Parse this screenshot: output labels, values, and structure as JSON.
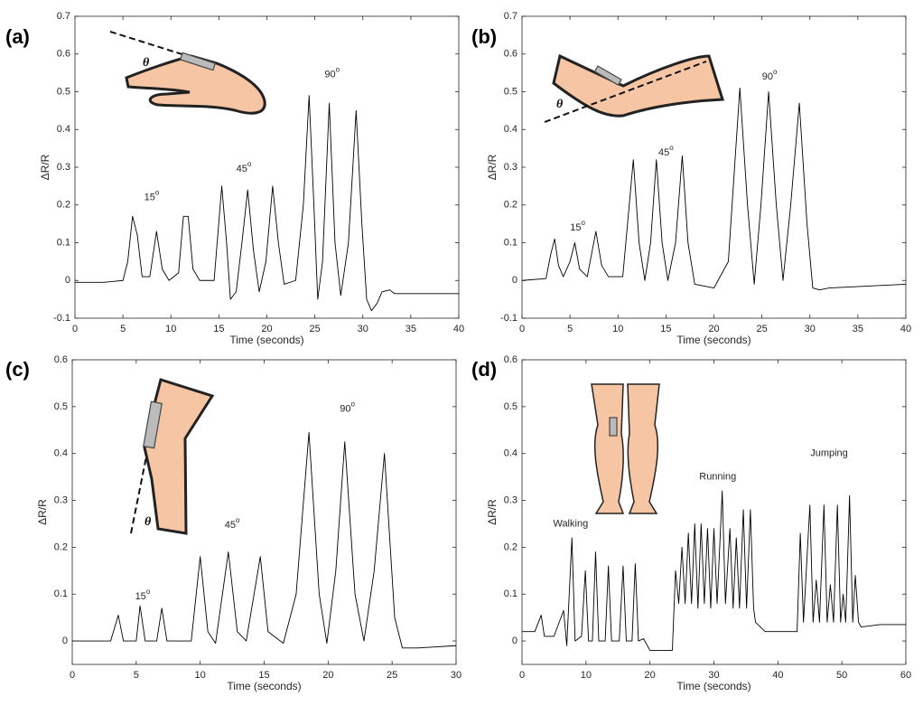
{
  "chart_data": [
    {
      "type": "line",
      "panel_label": "(a)",
      "xlabel": "Time (seconds)",
      "ylabel": "ΔR/R",
      "inset_label": "θ",
      "color": "#000000",
      "xlim": [
        0,
        40
      ],
      "xticks": [
        0,
        5,
        10,
        15,
        20,
        25,
        30,
        35,
        40
      ],
      "ylim": [
        -0.1,
        0.7
      ],
      "yticks": [
        -0.1,
        0,
        0.1,
        0.2,
        0.3,
        0.4,
        0.5,
        0.6,
        0.7
      ],
      "x": [
        0,
        3,
        5,
        5.5,
        6,
        6.5,
        7,
        7.8,
        8.5,
        9.1,
        9.8,
        10.8,
        11.3,
        11.8,
        12.3,
        13,
        14.5,
        15.3,
        15.8,
        16.2,
        16.8,
        17.4,
        18,
        18.6,
        19.2,
        19.9,
        20.6,
        21.2,
        21.8,
        23,
        23.8,
        24.4,
        24.9,
        25.3,
        25.8,
        26.5,
        27.1,
        27.7,
        28.5,
        29.3,
        29.9,
        30.4,
        30.9,
        31.5,
        32,
        32.8,
        33.3,
        36,
        40
      ],
      "values": [
        -0.005,
        -0.005,
        0,
        0.05,
        0.17,
        0.12,
        0.01,
        0.01,
        0.13,
        0.03,
        0,
        0.02,
        0.17,
        0.17,
        0.03,
        0,
        0,
        0.25,
        0.1,
        -0.05,
        -0.03,
        0.1,
        0.24,
        0.08,
        -0.03,
        0.05,
        0.25,
        0.1,
        -0.01,
        0,
        0.2,
        0.49,
        0.2,
        -0.05,
        0.05,
        0.47,
        0.1,
        -0.04,
        0.1,
        0.45,
        0.15,
        -0.05,
        -0.08,
        -0.06,
        -0.03,
        -0.025,
        -0.035,
        -0.035,
        -0.035
      ],
      "annotations": [
        {
          "text": "15",
          "sup": "o",
          "x": 8,
          "y": 0.22
        },
        {
          "text": "45",
          "sup": "o",
          "x": 17.6,
          "y": 0.295
        },
        {
          "text": "90",
          "sup": "o",
          "x": 26.8,
          "y": 0.546
        }
      ]
    },
    {
      "type": "line",
      "panel_label": "(b)",
      "xlabel": "Time (seconds)",
      "ylabel": "ΔR/R",
      "inset_label": "θ",
      "color": "#000000",
      "xlim": [
        0,
        40
      ],
      "xticks": [
        0,
        5,
        10,
        15,
        20,
        25,
        30,
        35,
        40
      ],
      "ylim": [
        -0.1,
        0.7
      ],
      "yticks": [
        -0.1,
        0,
        0.1,
        0.2,
        0.3,
        0.4,
        0.5,
        0.6,
        0.7
      ],
      "x": [
        0,
        2.5,
        3,
        3.4,
        3.8,
        4.3,
        5,
        5.5,
        6,
        6.8,
        7.7,
        8.3,
        9,
        10.5,
        11.6,
        12.2,
        12.8,
        13.4,
        14,
        14.6,
        15.2,
        16,
        16.7,
        17.3,
        18,
        20,
        21.5,
        22.7,
        23.5,
        24.2,
        24.9,
        25.7,
        26.5,
        27.2,
        28,
        28.9,
        29.7,
        30.3,
        31,
        32,
        40
      ],
      "values": [
        0,
        0.005,
        0.07,
        0.11,
        0.04,
        0.01,
        0.05,
        0.1,
        0.03,
        0.01,
        0.13,
        0.04,
        0.01,
        0.01,
        0.32,
        0.1,
        0,
        0.1,
        0.32,
        0.1,
        0,
        0.1,
        0.33,
        0.1,
        -0.01,
        -0.02,
        0.05,
        0.51,
        0.2,
        -0.01,
        0.2,
        0.5,
        0.2,
        0,
        0.2,
        0.47,
        0.15,
        -0.02,
        -0.025,
        -0.02,
        -0.01
      ],
      "annotations": [
        {
          "text": "15",
          "sup": "o",
          "x": 5.8,
          "y": 0.14
        },
        {
          "text": "45",
          "sup": "o",
          "x": 15,
          "y": 0.338
        },
        {
          "text": "90",
          "sup": "o",
          "x": 25.8,
          "y": 0.54
        }
      ]
    },
    {
      "type": "line",
      "panel_label": "(c)",
      "xlabel": "Time (seconds)",
      "ylabel": "ΔR/R",
      "inset_label": "θ",
      "color": "#000000",
      "xlim": [
        0,
        30
      ],
      "xticks": [
        0,
        5,
        10,
        15,
        20,
        25,
        30
      ],
      "ylim": [
        -0.05,
        0.6
      ],
      "yticks": [
        0,
        0.1,
        0.2,
        0.3,
        0.4,
        0.5,
        0.6
      ],
      "x": [
        0,
        3,
        3.6,
        4,
        5,
        5.3,
        5.7,
        6.6,
        7,
        7.4,
        9.3,
        10,
        10.6,
        11.2,
        12.2,
        12.9,
        13.6,
        14.7,
        15.3,
        16.5,
        17.5,
        18.5,
        19.3,
        19.9,
        20.6,
        21.3,
        22.1,
        22.8,
        23.6,
        24.4,
        25.2,
        25.8,
        27,
        30
      ],
      "values": [
        0,
        0,
        0.055,
        0,
        0,
        0.075,
        0,
        0,
        0.07,
        0,
        0,
        0.18,
        0.02,
        -0.005,
        0.19,
        0.02,
        0,
        0.18,
        0.02,
        -0.005,
        0.1,
        0.445,
        0.1,
        -0.005,
        0.15,
        0.425,
        0.1,
        0,
        0.15,
        0.4,
        0.05,
        -0.015,
        -0.015,
        -0.01
      ],
      "annotations": [
        {
          "text": "15",
          "sup": "o",
          "x": 5.5,
          "y": 0.095
        },
        {
          "text": "45",
          "sup": "o",
          "x": 12.5,
          "y": 0.247
        },
        {
          "text": "90",
          "sup": "o",
          "x": 21.5,
          "y": 0.495
        }
      ]
    },
    {
      "type": "line",
      "panel_label": "(d)",
      "xlabel": "Time (seconds)",
      "ylabel": "ΔR/R",
      "color": "#000000",
      "xlim": [
        0,
        60
      ],
      "xticks": [
        0,
        10,
        20,
        30,
        40,
        50,
        60
      ],
      "ylim": [
        -0.05,
        0.6
      ],
      "yticks": [
        0,
        0.1,
        0.2,
        0.3,
        0.4,
        0.5,
        0.6
      ],
      "x": [
        0,
        2,
        3,
        3.5,
        5,
        6.5,
        7,
        7.8,
        8.3,
        9.3,
        9.9,
        10.4,
        11,
        11.5,
        12,
        13,
        13.5,
        14,
        15.2,
        15.8,
        16.3,
        17.2,
        17.7,
        18.2,
        19,
        20,
        23.5,
        24,
        24.5,
        25,
        25.5,
        26,
        26.5,
        27,
        27.5,
        28,
        28.5,
        29,
        29.5,
        30,
        30.5,
        31.3,
        31.8,
        32.5,
        33,
        33.5,
        34,
        34.6,
        35.1,
        35.7,
        36.2,
        36.5,
        38,
        43,
        43.5,
        44,
        45,
        45.5,
        46,
        46.5,
        47.2,
        47.7,
        48.2,
        48.7,
        49.3,
        49.8,
        50.2,
        50.6,
        51.2,
        51.7,
        52.1,
        52.6,
        53,
        56,
        60
      ],
      "values": [
        0.02,
        0.02,
        0.055,
        0.01,
        0.01,
        0.065,
        -0.01,
        0.22,
        0,
        0.01,
        0.15,
        0,
        0,
        0.19,
        0,
        0,
        0.16,
        0,
        0,
        0.16,
        0,
        0,
        0.165,
        0,
        0.005,
        -0.02,
        -0.02,
        0.15,
        0.08,
        0.2,
        0.08,
        0.23,
        0.08,
        0.25,
        0.07,
        0.25,
        0.08,
        0.24,
        0.07,
        0.24,
        0.08,
        0.32,
        0.08,
        0.24,
        0.07,
        0.22,
        0.07,
        0.28,
        0.07,
        0.28,
        0.07,
        0.04,
        0.02,
        0.02,
        0.23,
        0.04,
        0.29,
        0.04,
        0.13,
        0.04,
        0.29,
        0.04,
        0.12,
        0.04,
        0.29,
        0.04,
        0.1,
        0.04,
        0.31,
        0.04,
        0.14,
        0.04,
        0.03,
        0.035,
        0.035
      ],
      "annotations": [
        {
          "text": "Walking",
          "x": 7.6,
          "y": 0.25
        },
        {
          "text": "Running",
          "x": 30.6,
          "y": 0.35
        },
        {
          "text": "Jumping",
          "x": 48,
          "y": 0.4
        }
      ]
    }
  ]
}
